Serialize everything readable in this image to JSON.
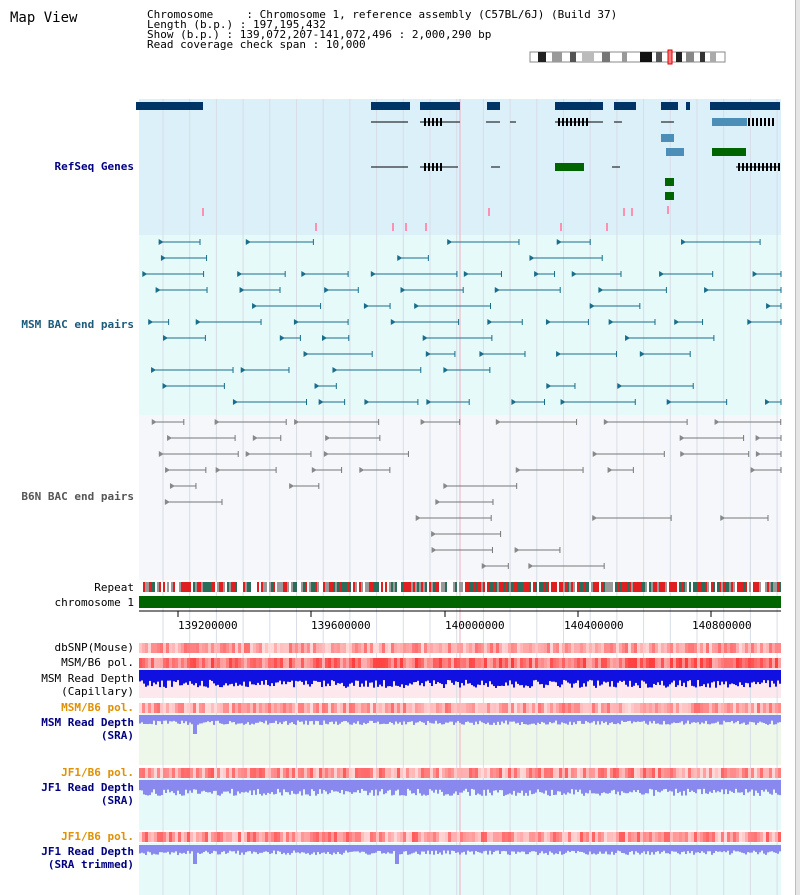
{
  "title": "Map View",
  "info": {
    "chromosome_label": "Chromosome",
    "chromosome_value": "Chromosome 1, reference assembly (C57BL/6J) (Build 37)",
    "length_label": "Length (b.p.)",
    "length_value": "197,195,432",
    "show_label": "Show (b.p.)",
    "show_value": "139,072,207-141,072,496 : 2,000,290 bp",
    "coverage_label": "Read coverage check span",
    "coverage_value": "10,000"
  },
  "tracks": {
    "refseq": "RefSeq Genes",
    "msm_bac": "MSM BAC end pairs",
    "b6n_bac": "B6N BAC end pairs",
    "repeat": "Repeat",
    "chromosome": "chromosome 1",
    "dbsnp": "dbSNP(Mouse)",
    "msm_pol": "MSM/B6 pol.",
    "msm_depth_cap": "MSM Read Depth\n(Capillary)",
    "msm_pol2": "MSM/B6 pol.",
    "msm_depth_sra": "MSM Read Depth\n(SRA)",
    "jf1_pol": "JF1/B6 pol.",
    "jf1_depth_sra": "JF1 Read Depth\n(SRA)",
    "jf1_pol2": "JF1/B6 pol.",
    "jf1_depth_trim": "JF1 Read Depth\n(SRA trimmed)"
  },
  "axis": {
    "ticks": [
      "139200000",
      "139600000",
      "140000000",
      "140400000",
      "140800000"
    ]
  },
  "colors": {
    "refseq_bg": "#dcf0fa",
    "msm_bg": "#e6fafa",
    "b6n_bg": "#f5f7fb",
    "gene_dark": "#003366",
    "gene_mid": "#4b8fb9",
    "gene_green": "#006400",
    "msm_line": "#1a6e8a",
    "b6n_line": "#777777",
    "depth_blue": "#1010e0",
    "depth_light": "#8888ee",
    "label_navy": "#000080",
    "label_orange": "#e09000",
    "label_teal": "#1a5a7a"
  }
}
